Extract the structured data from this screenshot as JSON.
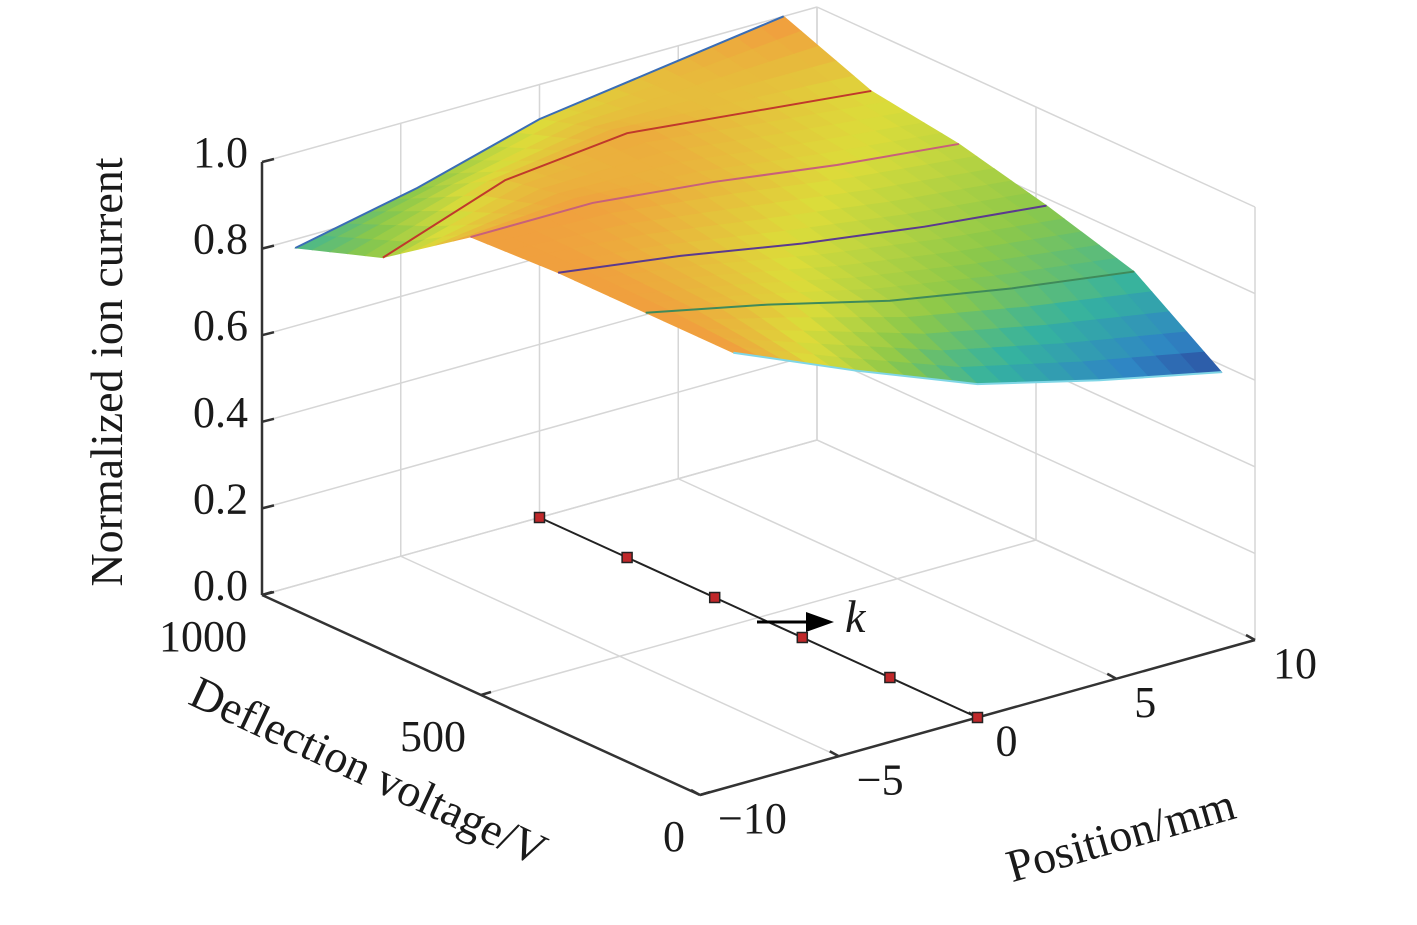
{
  "chart_data": {
    "type": "surface3d",
    "title": "",
    "xlabel": "Deflection voltage/V",
    "ylabel": "Position/mm",
    "zlabel": "Normalized ion current",
    "xlim": [
      0,
      1000
    ],
    "ylim": [
      -10,
      10
    ],
    "zlim": [
      0,
      1.0
    ],
    "xticks": [
      {
        "value": 1000,
        "label": "1000"
      },
      {
        "value": 500,
        "label": "500"
      },
      {
        "value": 0,
        "label": "0"
      }
    ],
    "yticks": [
      {
        "value": -10,
        "label": "−10"
      },
      {
        "value": -5,
        "label": "−5"
      },
      {
        "value": 0,
        "label": "0"
      },
      {
        "value": 5,
        "label": "5"
      },
      {
        "value": 10,
        "label": "10"
      }
    ],
    "zticks": [
      {
        "value": 0.0,
        "label": "0.0"
      },
      {
        "value": 0.2,
        "label": "0.2"
      },
      {
        "value": 0.4,
        "label": "0.4"
      },
      {
        "value": 0.6,
        "label": "0.6"
      },
      {
        "value": 0.8,
        "label": "0.8"
      },
      {
        "value": 1.0,
        "label": "1.0"
      }
    ],
    "grid": true,
    "surface": {
      "voltage": [
        1000,
        800,
        600,
        400,
        200,
        0
      ],
      "position": [
        -8.8,
        -4.4,
        0,
        4.4,
        8.8
      ],
      "z": [
        [
          0.78,
          0.84,
          0.92,
          0.96,
          1.0
        ],
        [
          0.85,
          0.95,
          0.98,
          0.95,
          0.92
        ],
        [
          0.99,
          0.99,
          0.96,
          0.92,
          0.89
        ],
        [
          1.0,
          0.96,
          0.91,
          0.87,
          0.84
        ],
        [
          1.0,
          0.94,
          0.87,
          0.82,
          0.78
        ],
        [
          1.0,
          0.88,
          0.77,
          0.7,
          0.64
        ]
      ],
      "line_colors": [
        "#3a6db5",
        "#c0392b",
        "#c8607a",
        "#5b3a8e",
        "#3f8a5a",
        "#7fd6e6"
      ]
    },
    "colormap": [
      "#2b2f8c",
      "#2f86c4",
      "#35b2a0",
      "#8cc84a",
      "#dcdc3a",
      "#f0a03e"
    ],
    "markers": {
      "position": 0,
      "voltage": [
        1000,
        800,
        600,
        400,
        200,
        0
      ],
      "color": "#c0282a"
    },
    "annotation": {
      "label": "k"
    }
  }
}
